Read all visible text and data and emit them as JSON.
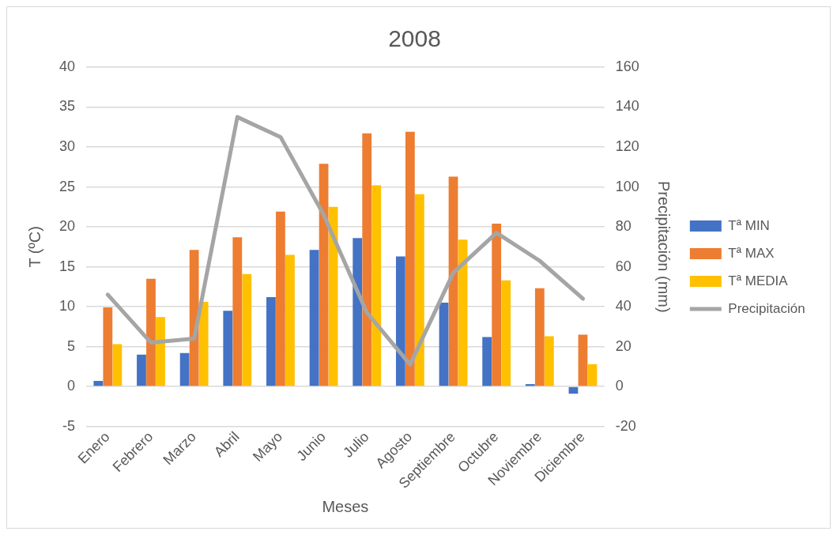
{
  "chart_data": {
    "type": "bar",
    "title": "2008",
    "xlabel": "Meses",
    "ylabel": "T (ºC)",
    "y2label": "Precipitación (mm)",
    "categories": [
      "Enero",
      "Febrero",
      "Marzo",
      "Abril",
      "Mayo",
      "Junio",
      "Julio",
      "Agosto",
      "Septiembre",
      "Octubre",
      "Noviembre",
      "Diciembre"
    ],
    "series": [
      {
        "name": "Tª MIN",
        "color": "#4472c4",
        "values": [
          0.7,
          4.0,
          4.2,
          9.5,
          11.2,
          17.1,
          18.6,
          16.3,
          10.5,
          6.2,
          0.3,
          -0.9
        ]
      },
      {
        "name": "Tª MAX",
        "color": "#ed7d31",
        "values": [
          9.9,
          13.5,
          17.1,
          18.7,
          21.9,
          27.9,
          31.7,
          31.9,
          26.3,
          20.4,
          12.3,
          6.5
        ]
      },
      {
        "name": "Tª MEDIA",
        "color": "#ffc000",
        "values": [
          5.3,
          8.7,
          10.6,
          14.1,
          16.5,
          22.5,
          25.2,
          24.1,
          18.4,
          13.3,
          6.3,
          2.8
        ]
      },
      {
        "name": "Precipitación",
        "type": "line",
        "axis": "y2",
        "color": "#a5a5a5",
        "values": [
          46,
          22,
          24,
          135,
          125,
          86,
          37,
          11,
          57,
          77,
          63,
          44
        ]
      }
    ],
    "ylim": [
      -5,
      40
    ],
    "yticks": [
      -5,
      0,
      5,
      10,
      15,
      20,
      25,
      30,
      35,
      40
    ],
    "y2lim": [
      -20,
      160
    ],
    "y2ticks": [
      -20,
      0,
      20,
      40,
      60,
      80,
      100,
      120,
      140,
      160
    ],
    "grid": "y",
    "legend": "right",
    "marker": "none"
  }
}
